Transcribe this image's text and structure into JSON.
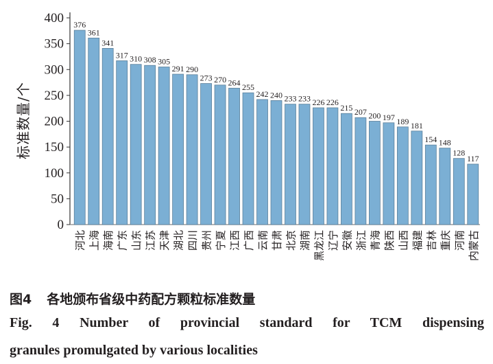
{
  "chart_data": {
    "type": "bar",
    "title": "",
    "xlabel": "",
    "ylabel": "标准数量/个",
    "ylim": [
      0,
      400
    ],
    "yticks": [
      0,
      50,
      100,
      150,
      200,
      250,
      300,
      350,
      400
    ],
    "grid": false,
    "legend": null,
    "bar_color": "#7bafd4",
    "categories": [
      "河北",
      "上海",
      "海南",
      "广东",
      "山东",
      "江苏",
      "天津",
      "湖北",
      "四川",
      "贵州",
      "宁夏",
      "江西",
      "广西",
      "云南",
      "甘肃",
      "北京",
      "湖南",
      "黑龙江",
      "辽宁",
      "安徽",
      "浙江",
      "青海",
      "陕西",
      "山西",
      "福建",
      "吉林",
      "重庆",
      "河南",
      "内蒙古"
    ],
    "values": [
      376,
      361,
      341,
      317,
      310,
      308,
      305,
      291,
      290,
      273,
      270,
      264,
      255,
      242,
      240,
      233,
      233,
      226,
      226,
      215,
      207,
      200,
      197,
      189,
      181,
      154,
      148,
      128,
      117
    ],
    "data_labels": true
  },
  "caption": {
    "cn_fig": "图4",
    "cn_text": "各地颁布省级中药配方颗粒标准数量",
    "en_line1": "Fig. 4  Number of provincial standard for TCM dispensing",
    "en_line2": "granules promulgated by various localities"
  }
}
